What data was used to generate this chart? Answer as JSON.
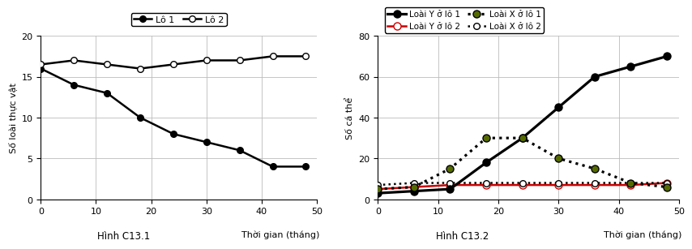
{
  "chart1": {
    "title": "Hình C13.1",
    "xlabel": "Thời gian (tháng)",
    "ylabel": "Số loài thực vật",
    "ylim": [
      0,
      20
    ],
    "yticks": [
      0,
      5,
      10,
      15,
      20
    ],
    "xlim": [
      0,
      50
    ],
    "xticks": [
      0,
      10,
      20,
      30,
      40,
      50
    ],
    "lo1_x": [
      0,
      6,
      12,
      18,
      24,
      30,
      36,
      42,
      48
    ],
    "lo1_y": [
      16,
      14,
      13,
      10,
      8,
      7,
      6,
      4,
      4
    ],
    "lo2_x": [
      0,
      6,
      12,
      18,
      24,
      30,
      36,
      42,
      48
    ],
    "lo2_y": [
      16.5,
      17,
      16.5,
      16,
      16.5,
      17,
      17,
      17.5,
      17.5
    ],
    "label_lo1": "Lô 1",
    "label_lo2": "Lô 2"
  },
  "chart2": {
    "title": "Hình C13.2",
    "xlabel": "Thời gian (tháng)",
    "ylabel": "Số cá thể",
    "ylim": [
      0,
      80
    ],
    "yticks": [
      0,
      20,
      40,
      60,
      80
    ],
    "xlim": [
      0,
      50
    ],
    "xticks": [
      0,
      10,
      20,
      30,
      40,
      50
    ],
    "ylo1_x": [
      0,
      6,
      12,
      18,
      24,
      30,
      36,
      42,
      48
    ],
    "ylo1_y": [
      3,
      4,
      5,
      18,
      30,
      45,
      60,
      65,
      70
    ],
    "ylo2_x": [
      0,
      6,
      12,
      18,
      24,
      30,
      36,
      42,
      48
    ],
    "ylo2_y": [
      5,
      6,
      7,
      7,
      7,
      7,
      7,
      7,
      8
    ],
    "xlo1_x": [
      0,
      6,
      12,
      18,
      24,
      30,
      36,
      42,
      48
    ],
    "xlo1_y": [
      5,
      6,
      15,
      30,
      30,
      20,
      15,
      8,
      6
    ],
    "xlo2_x": [
      0,
      6,
      12,
      18,
      24,
      30,
      36,
      42,
      48
    ],
    "xlo2_y": [
      7,
      8,
      8,
      8,
      8,
      8,
      8,
      8,
      8
    ],
    "label_ylo1": "Loài Y ở lô 1",
    "label_ylo2": "Loài Y ở lô 2",
    "label_xlo1": "Loài X ở lô 1",
    "label_xlo2": "Loài X ở lô 2"
  },
  "background_color": "#ffffff",
  "grid_color": "#bbbbbb"
}
